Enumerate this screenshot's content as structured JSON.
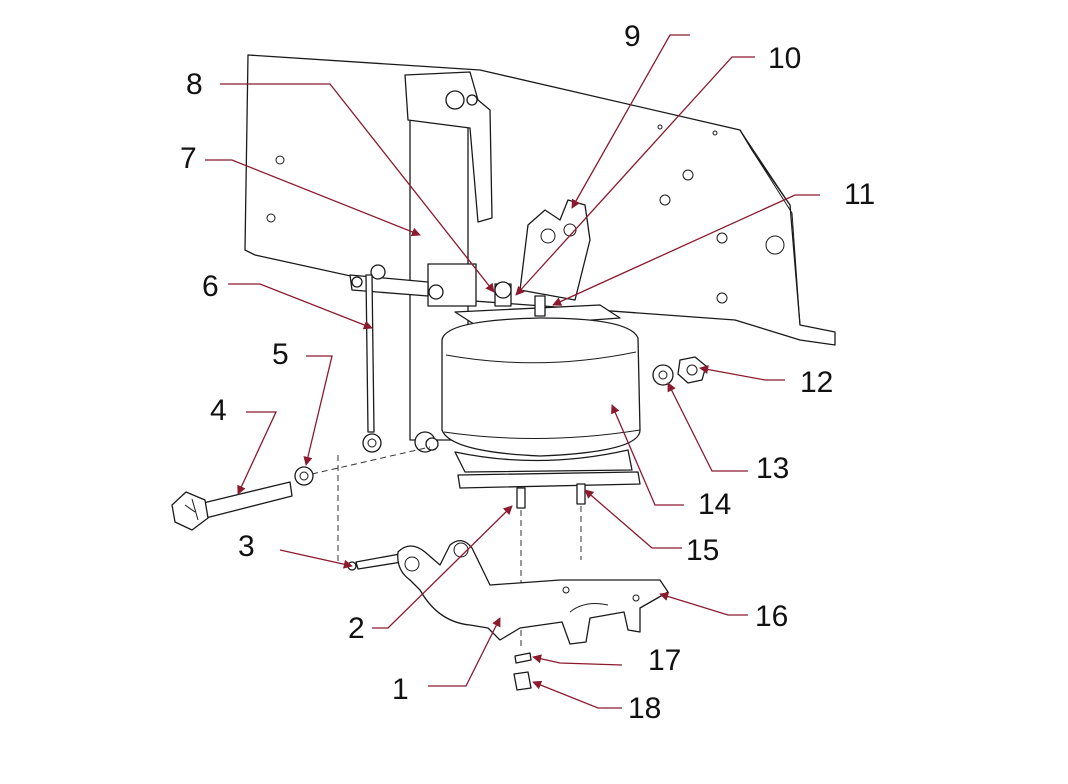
{
  "colors": {
    "leader": "#8b1a2e",
    "outline": "#1a1a1a",
    "background": "#ffffff"
  },
  "callouts": [
    {
      "number": "1"
    },
    {
      "number": "2"
    },
    {
      "number": "3"
    },
    {
      "number": "4"
    },
    {
      "number": "5"
    },
    {
      "number": "6"
    },
    {
      "number": "7"
    },
    {
      "number": "8"
    },
    {
      "number": "9"
    },
    {
      "number": "10"
    },
    {
      "number": "11"
    },
    {
      "number": "12"
    },
    {
      "number": "13"
    },
    {
      "number": "14"
    },
    {
      "number": "15"
    },
    {
      "number": "16"
    },
    {
      "number": "17"
    },
    {
      "number": "18"
    }
  ]
}
